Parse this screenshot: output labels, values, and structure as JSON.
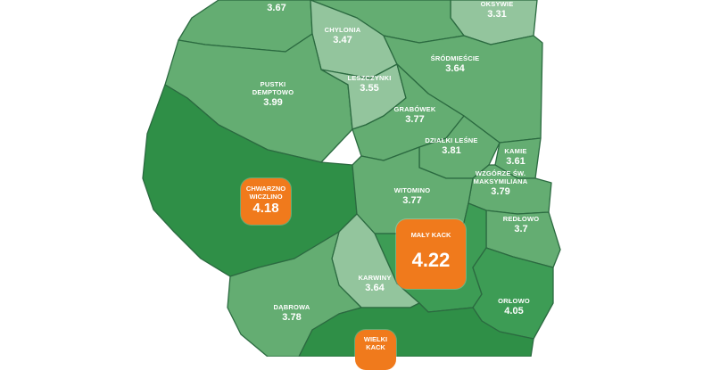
{
  "colors": {
    "low": "#93c59d",
    "mid": "#64ad72",
    "high": "#3d9c55",
    "top": "#2f8f47",
    "highlight": "#f07a1c",
    "border": "#2b6a40"
  },
  "districts": [
    {
      "name": "",
      "value": "3.67"
    },
    {
      "name": "OKSYWIE",
      "value": "3.31"
    },
    {
      "name": "CHYLONIA",
      "value": "3.47"
    },
    {
      "name": "ŚRÓDMIEŚCIE",
      "value": "3.64"
    },
    {
      "name": "PUSTKI DEMPTOWO",
      "value": "3.99"
    },
    {
      "name": "LESZCZYNKI",
      "value": "3.55"
    },
    {
      "name": "GRABÓWEK",
      "value": "3.77"
    },
    {
      "name": "DZIAŁKI LEŚNE",
      "value": "3.81"
    },
    {
      "name": "KAMIE",
      "value": "3.61"
    },
    {
      "name": "CHWARZNO WICZLINO",
      "value": "4.18"
    },
    {
      "name": "WZGÓRZE ŚW. MAKSYMILIANA",
      "value": "3.79"
    },
    {
      "name": "WITOMINO",
      "value": "3.77"
    },
    {
      "name": "MAŁY KACK",
      "value": "4.22"
    },
    {
      "name": "REDŁOWO",
      "value": "3.7"
    },
    {
      "name": "KARWINY",
      "value": "3.64"
    },
    {
      "name": "DĄBROWA",
      "value": "3.78"
    },
    {
      "name": "ORŁOWO",
      "value": "4.05"
    },
    {
      "name": "WIELKI KACK",
      "value": ""
    }
  ]
}
